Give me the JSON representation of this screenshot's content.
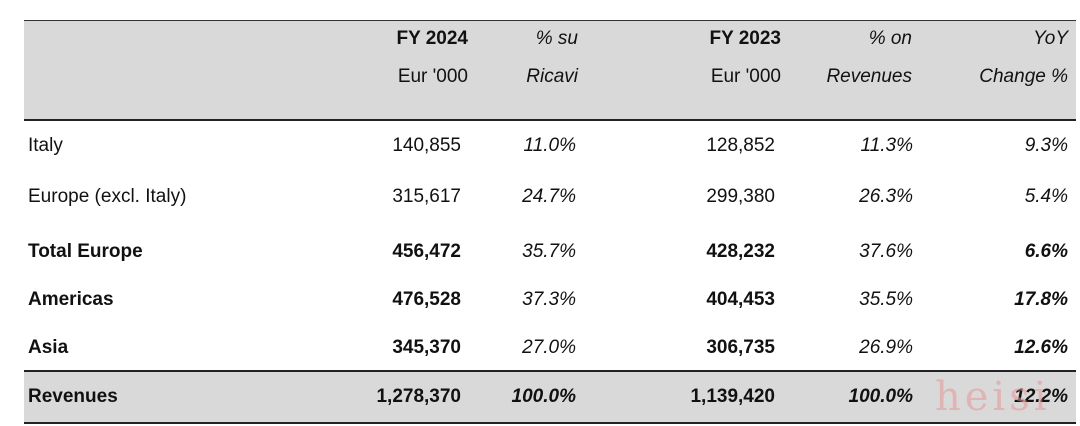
{
  "header": {
    "fy2024": "FY 2024",
    "fy2024_unit": "Eur '000",
    "pct_su": "% su",
    "ricavi": "Ricavi",
    "fy2023": "FY 2023",
    "fy2023_unit": "Eur '000",
    "pct_on": "% on",
    "revenues": "Revenues",
    "yoy": "YoY",
    "change": "Change %"
  },
  "rows": [
    {
      "label": "Italy",
      "fy2024": "140,855",
      "pct2024": "11.0%",
      "fy2023": "128,852",
      "pct2023": "11.3%",
      "yoy": "9.3%"
    },
    {
      "label": "Europe (excl. Italy)",
      "fy2024": "315,617",
      "pct2024": "24.7%",
      "fy2023": "299,380",
      "pct2023": "26.3%",
      "yoy": "5.4%"
    },
    {
      "label": "Total Europe",
      "fy2024": "456,472",
      "pct2024": "35.7%",
      "fy2023": "428,232",
      "pct2023": "37.6%",
      "yoy": "6.6%"
    },
    {
      "label": "Americas",
      "fy2024": "476,528",
      "pct2024": "37.3%",
      "fy2023": "404,453",
      "pct2023": "35.5%",
      "yoy": "17.8%"
    },
    {
      "label": "Asia",
      "fy2024": "345,370",
      "pct2024": "27.0%",
      "fy2023": "306,735",
      "pct2023": "26.9%",
      "yoy": "12.6%"
    }
  ],
  "total": {
    "label": "Revenues",
    "fy2024": "1,278,370",
    "pct2024": "100.0%",
    "fy2023": "1,139,420",
    "pct2023": "100.0%",
    "yoy": "12.2%"
  },
  "watermark": "heisi"
}
